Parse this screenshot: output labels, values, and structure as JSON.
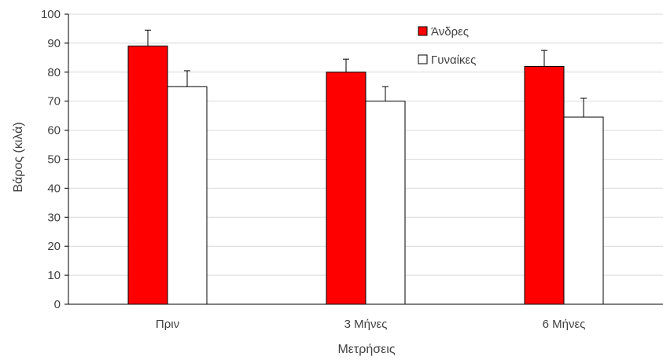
{
  "chart_data": {
    "type": "bar",
    "title": "",
    "xlabel": "Μετρήσεις",
    "ylabel": "Βάρος (κιλά)",
    "categories": [
      "Πριν",
      "3 Μήνες",
      "6 Μήνες"
    ],
    "ylim": [
      0,
      100
    ],
    "yticks": [
      0,
      10,
      20,
      30,
      40,
      50,
      60,
      70,
      80,
      90,
      100
    ],
    "grid": true,
    "legend_position": "top-right",
    "series": [
      {
        "name": "Άνδρες",
        "values": [
          89,
          80,
          82
        ],
        "error": [
          5.5,
          4.5,
          5.5
        ],
        "color": "#ff0000"
      },
      {
        "name": "Γυναίκες",
        "values": [
          75,
          70,
          64.5
        ],
        "error": [
          5.5,
          5,
          6.5
        ],
        "color": "#ffffff"
      }
    ]
  }
}
